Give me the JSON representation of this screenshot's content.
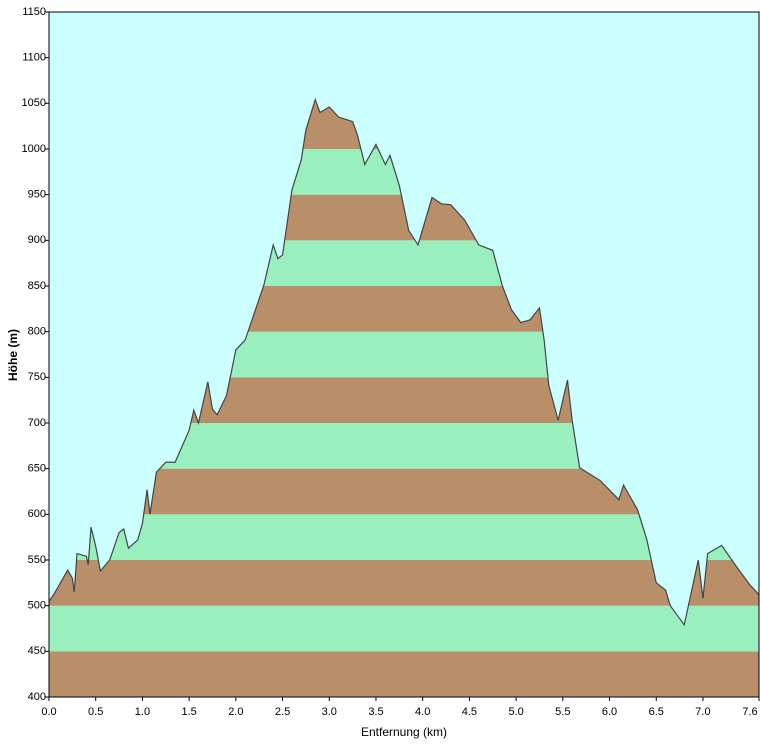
{
  "chart_data": {
    "type": "area",
    "x_label": "Entfernung  (km)",
    "y_label": "Höhe (m)",
    "x": [
      0,
      0.05,
      0.2,
      0.25,
      0.27,
      0.3,
      0.4,
      0.42,
      0.45,
      0.5,
      0.55,
      0.65,
      0.75,
      0.8,
      0.85,
      0.95,
      1.0,
      1.05,
      1.08,
      1.15,
      1.25,
      1.35,
      1.5,
      1.55,
      1.6,
      1.7,
      1.75,
      1.8,
      1.9,
      2.0,
      2.1,
      2.15,
      2.3,
      2.4,
      2.45,
      2.5,
      2.6,
      2.7,
      2.75,
      2.85,
      2.9,
      3.0,
      3.1,
      3.25,
      3.3,
      3.38,
      3.5,
      3.6,
      3.65,
      3.75,
      3.85,
      3.95,
      4.1,
      4.2,
      4.3,
      4.45,
      4.6,
      4.75,
      4.85,
      4.95,
      5.05,
      5.15,
      5.25,
      5.3,
      5.35,
      5.45,
      5.55,
      5.6,
      5.68,
      5.9,
      6.1,
      6.15,
      6.3,
      6.4,
      6.5,
      6.6,
      6.65,
      6.75,
      6.8,
      6.88,
      6.95,
      7.0,
      7.05,
      7.2,
      7.35,
      7.5,
      7.6
    ],
    "values": [
      505,
      512,
      539,
      530,
      515,
      557,
      554,
      545,
      586,
      565,
      538,
      550,
      580,
      584,
      563,
      572,
      590,
      627,
      600,
      646,
      657,
      657,
      692,
      714,
      700,
      745,
      715,
      709,
      730,
      780,
      791,
      806,
      851,
      895,
      880,
      884,
      955,
      988,
      1021,
      1054,
      1040,
      1046,
      1035,
      1030,
      1016,
      983,
      1005,
      983,
      993,
      960,
      911,
      895,
      947,
      940,
      939,
      922,
      895,
      889,
      851,
      824,
      810,
      813,
      826,
      791,
      741,
      703,
      747,
      703,
      651,
      637,
      616,
      632,
      605,
      572,
      525,
      517,
      500,
      486,
      479,
      517,
      550,
      508,
      557,
      566,
      544,
      523,
      512
    ],
    "xlim": [
      0,
      7.6
    ],
    "ylim": [
      400,
      1150
    ],
    "xticks": [
      {
        "value": 0,
        "label": "0.0"
      },
      0.5,
      {
        "value": 1,
        "label": "1.0"
      },
      1.5,
      {
        "value": 2,
        "label": "2.0"
      },
      2.5,
      {
        "value": 3,
        "label": "3.0"
      },
      3.5,
      {
        "value": 4,
        "label": "4.0"
      },
      4.5,
      {
        "value": 5,
        "label": "5.0"
      },
      5.5,
      {
        "value": 6,
        "label": "6.0"
      },
      6.5,
      {
        "value": 7,
        "label": "7.0"
      },
      7.6
    ],
    "yticks": [
      400,
      450,
      500,
      550,
      600,
      650,
      700,
      750,
      800,
      850,
      900,
      950,
      1000,
      1050,
      1100,
      1150
    ],
    "background": "#ccffff",
    "band_colors": [
      "#b88f68",
      "#9aefbe"
    ],
    "line_color": "#444444"
  }
}
